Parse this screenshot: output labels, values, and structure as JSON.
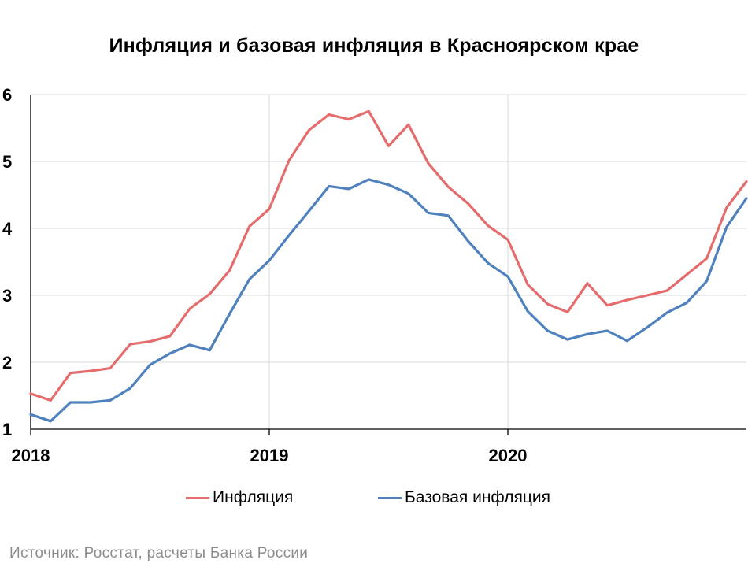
{
  "chart_data": {
    "type": "line",
    "title": "Инфляция и базовая инфляция в Красноярском крае",
    "xlabel": "",
    "ylabel": "",
    "ylim": [
      1,
      6
    ],
    "yticks": [
      "1",
      "2",
      "3",
      "4",
      "5",
      "6"
    ],
    "xtick_labels": [
      "2018",
      "2019",
      "2020"
    ],
    "grid": true,
    "legend_position": "bottom",
    "x_points": 37,
    "series": [
      {
        "name": "Инфляция",
        "color": "#e46c6c",
        "values": [
          1.53,
          1.43,
          1.84,
          1.87,
          1.91,
          2.27,
          2.31,
          2.39,
          2.8,
          3.02,
          3.37,
          4.03,
          4.29,
          5.02,
          5.47,
          5.7,
          5.63,
          5.75,
          5.23,
          5.55,
          4.97,
          4.62,
          4.37,
          4.04,
          3.83,
          3.16,
          2.87,
          2.75,
          3.18,
          2.85,
          2.93,
          3.0,
          3.07,
          3.31,
          3.55,
          4.31,
          4.7
        ]
      },
      {
        "name": "Базовая инфляция",
        "color": "#4f81bd",
        "values": [
          1.22,
          1.12,
          1.4,
          1.4,
          1.43,
          1.61,
          1.96,
          2.13,
          2.26,
          2.18,
          2.72,
          3.24,
          3.52,
          3.9,
          4.26,
          4.63,
          4.59,
          4.73,
          4.65,
          4.52,
          4.23,
          4.19,
          3.81,
          3.48,
          3.28,
          2.76,
          2.47,
          2.34,
          2.42,
          2.47,
          2.32,
          2.52,
          2.74,
          2.89,
          3.21,
          4.02,
          4.45
        ]
      }
    ]
  },
  "source": "Источник: Росстат, расчеты Банка России"
}
